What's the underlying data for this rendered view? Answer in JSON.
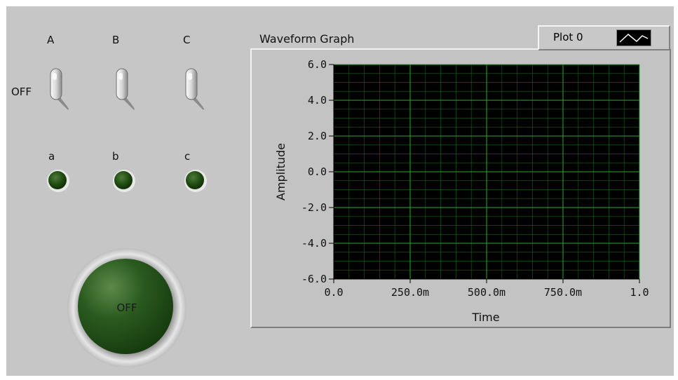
{
  "switches": [
    {
      "label": "A",
      "state": "OFF"
    },
    {
      "label": "B",
      "state": "OFF"
    },
    {
      "label": "C",
      "state": "OFF"
    }
  ],
  "switch_off_label": "OFF",
  "leds": [
    {
      "label": "a",
      "lit": false
    },
    {
      "label": "b",
      "lit": false
    },
    {
      "label": "c",
      "lit": false
    }
  ],
  "led_off_color": "#1e4a10",
  "big_button": {
    "label": "OFF",
    "color": "#2a5a1f"
  },
  "graph": {
    "title": "Waveform Graph",
    "legend": {
      "plot_name": "Plot 0"
    },
    "background": "#000000",
    "grid_color": "#1f7a1f",
    "chart_data": {
      "type": "line",
      "series": [
        {
          "name": "Plot 0",
          "x": [],
          "y": []
        }
      ],
      "xlabel": "Time",
      "ylabel": "Amplitude",
      "xlim": [
        0,
        1
      ],
      "ylim": [
        -6,
        6
      ],
      "x_ticks": [
        "0.0",
        "250.0m",
        "500.0m",
        "750.0m",
        "1.0"
      ],
      "y_ticks": [
        "6.0",
        "4.0",
        "2.0",
        "0.0",
        "-2.0",
        "-4.0",
        "-6.0"
      ],
      "grid": true
    }
  }
}
